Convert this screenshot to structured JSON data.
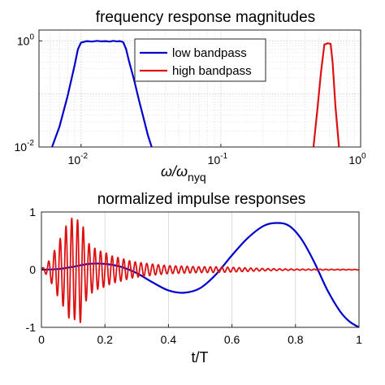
{
  "chart_data": [
    {
      "type": "line",
      "title": "frequency response magnitudes",
      "xlabel": "ω/ω",
      "xlabel_sub": "nyq",
      "ylabel": "",
      "xscale": "log",
      "yscale": "log",
      "xlim": [
        0.005,
        1
      ],
      "ylim": [
        0.01,
        1.6
      ],
      "x_ticks": [
        {
          "value": 0.01,
          "base": "10",
          "exp": "-2"
        },
        {
          "value": 0.1,
          "base": "10",
          "exp": "-1"
        },
        {
          "value": 1,
          "base": "10",
          "exp": "0"
        }
      ],
      "y_ticks": [
        {
          "value": 0.01,
          "base": "10",
          "exp": "-2"
        },
        {
          "value": 1,
          "base": "10",
          "exp": "0"
        }
      ],
      "grid": true,
      "legend_position": "top-right",
      "series": [
        {
          "name": "low bandpass",
          "color": "#0000cc",
          "x": [
            0.0062,
            0.007,
            0.008,
            0.009,
            0.0095,
            0.01,
            0.011,
            0.012,
            0.013,
            0.014,
            0.015,
            0.016,
            0.017,
            0.018,
            0.019,
            0.02,
            0.021,
            0.022,
            0.024,
            0.026,
            0.028,
            0.03,
            0.032
          ],
          "y": [
            0.01,
            0.024,
            0.09,
            0.35,
            0.7,
            0.93,
            0.99,
            0.97,
            1.0,
            0.98,
            0.99,
            0.97,
            1.0,
            0.98,
            0.99,
            0.95,
            0.7,
            0.42,
            0.18,
            0.075,
            0.035,
            0.017,
            0.01
          ]
        },
        {
          "name": "high bandpass",
          "color": "#dd1111",
          "x": [
            0.46,
            0.49,
            0.52,
            0.55,
            0.58,
            0.61,
            0.63,
            0.66,
            0.7
          ],
          "y": [
            0.01,
            0.05,
            0.25,
            0.85,
            0.9,
            0.88,
            0.4,
            0.06,
            0.01
          ]
        }
      ]
    },
    {
      "type": "line",
      "title": "normalized impulse responses",
      "xlabel": "t/T",
      "ylabel": "",
      "xlim": [
        0,
        1
      ],
      "ylim": [
        -1,
        1
      ],
      "x_ticks": [
        "0",
        "0.2",
        "0.4",
        "0.6",
        "0.8",
        "1"
      ],
      "y_ticks": [
        "-1",
        "0",
        "1"
      ],
      "grid": true,
      "series": [
        {
          "name": "low bandpass",
          "color": "#0000cc",
          "x": [
            0,
            0.05,
            0.1,
            0.15,
            0.2,
            0.25,
            0.3,
            0.35,
            0.4,
            0.45,
            0.5,
            0.55,
            0.6,
            0.65,
            0.7,
            0.74,
            0.78,
            0.82,
            0.86,
            0.9,
            0.94,
            0.97,
            1.0
          ],
          "y": [
            0,
            0.01,
            0.05,
            0.1,
            0.1,
            0.05,
            -0.06,
            -0.22,
            -0.36,
            -0.4,
            -0.32,
            -0.08,
            0.25,
            0.55,
            0.76,
            0.81,
            0.76,
            0.52,
            0.12,
            -0.35,
            -0.72,
            -0.9,
            -1.0
          ]
        },
        {
          "name": "high bandpass",
          "color": "#dd1111",
          "envelope": {
            "t": [
              0,
              0.01,
              0.02,
              0.03,
              0.04,
              0.05,
              0.06,
              0.07,
              0.08,
              0.09,
              0.1,
              0.11,
              0.12,
              0.13,
              0.14,
              0.15,
              0.16,
              0.18,
              0.2,
              0.22,
              0.25,
              0.28,
              0.3,
              0.33,
              0.36,
              0.4,
              0.45,
              0.5,
              0.55,
              0.6,
              0.65,
              0.7,
              0.8,
              1.0
            ],
            "amplitude": [
              0.02,
              0.05,
              0.12,
              0.22,
              0.32,
              0.45,
              0.55,
              0.65,
              0.8,
              0.86,
              0.92,
              0.8,
              0.97,
              0.78,
              0.55,
              0.45,
              0.4,
              0.33,
              0.3,
              0.24,
              0.2,
              0.15,
              0.13,
              0.11,
              0.09,
              0.07,
              0.06,
              0.05,
              0.05,
              0.04,
              0.03,
              0.02,
              0.01,
              0.005
            ]
          },
          "cycles": 55
        }
      ]
    }
  ]
}
